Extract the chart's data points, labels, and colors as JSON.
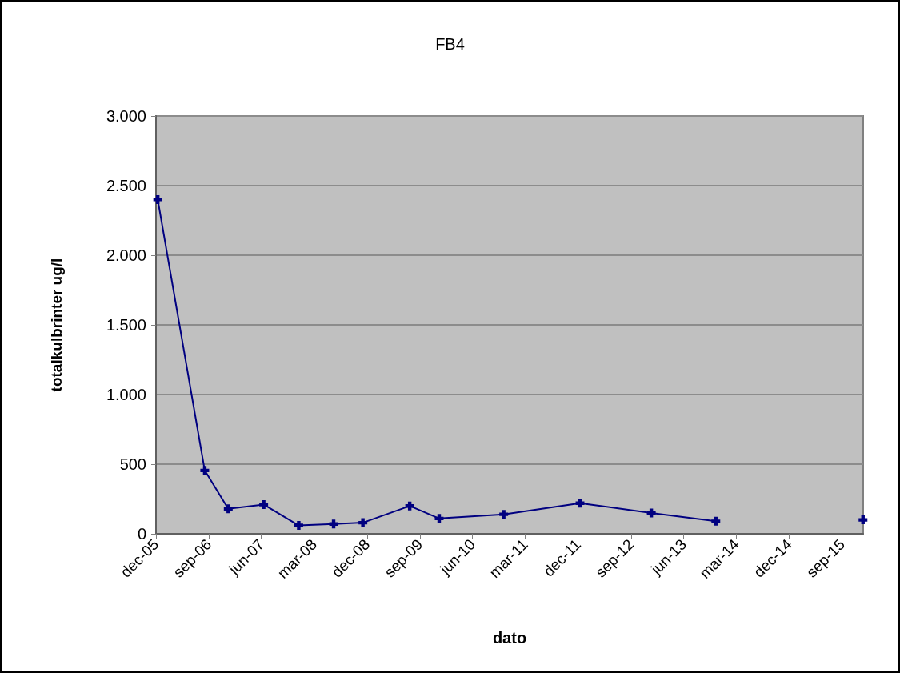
{
  "chart_data": {
    "type": "line",
    "title": "FB4",
    "xlabel": "dato",
    "ylabel": "totalkulbrinter ug/l",
    "x": [
      "2005-12-10",
      "2006-08-11",
      "2006-12-11",
      "2007-06-13",
      "2007-12-12",
      "2008-06-10",
      "2008-11-09",
      "2009-07-10",
      "2009-12-10",
      "2010-11-10",
      "2011-12-11",
      "2012-12-15",
      "2013-11-15",
      "2014-10-01",
      "2015-12-19"
    ],
    "series": [
      {
        "color": "#000080",
        "values": [
          2400,
          455,
          180,
          210,
          60,
          70,
          80,
          200,
          110,
          140,
          220,
          150,
          90,
          null,
          100
        ]
      }
    ],
    "xlim": [
      "2005-12-01",
      "2015-12-20"
    ],
    "xticks": [
      {
        "value": "2005-12-01",
        "label": "dec-05"
      },
      {
        "value": "2006-09-01",
        "label": "sep-06"
      },
      {
        "value": "2007-06-01",
        "label": "jun-07"
      },
      {
        "value": "2008-03-01",
        "label": "mar-08"
      },
      {
        "value": "2008-12-01",
        "label": "dec-08"
      },
      {
        "value": "2009-09-01",
        "label": "sep-09"
      },
      {
        "value": "2010-06-01",
        "label": "jun-10"
      },
      {
        "value": "2011-03-01",
        "label": "mar-11"
      },
      {
        "value": "2011-12-01",
        "label": "dec-11"
      },
      {
        "value": "2012-09-01",
        "label": "sep-12"
      },
      {
        "value": "2013-06-01",
        "label": "jun-13"
      },
      {
        "value": "2014-03-01",
        "label": "mar-14"
      },
      {
        "value": "2014-12-01",
        "label": "dec-14"
      },
      {
        "value": "2015-09-01",
        "label": "sep-15"
      }
    ],
    "ylim": [
      0,
      3000
    ],
    "yticks": [
      0,
      {
        "value": 500,
        "label": "500"
      },
      {
        "value": 1000,
        "label": "1.000"
      },
      {
        "value": 1500,
        "label": "1.500"
      },
      {
        "value": 2000,
        "label": "2.000"
      },
      {
        "value": 2500,
        "label": "2.500"
      },
      {
        "value": 3000,
        "label": "3.000"
      }
    ],
    "grid": "y",
    "marker": "cross",
    "line_style": "solid"
  }
}
